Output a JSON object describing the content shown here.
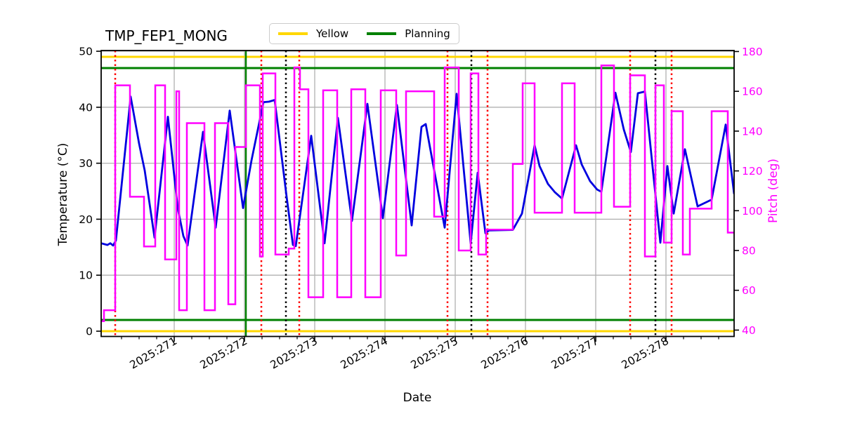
{
  "figure": {
    "background": "#ffffff"
  },
  "legend": {
    "items": [
      {
        "label": "Yellow",
        "color": "#ffd700"
      },
      {
        "label": "Planning",
        "color": "#008000"
      }
    ]
  },
  "chart_data": {
    "type": "line",
    "title": "TMP_FEP1_MONG",
    "xlabel": "Date",
    "ylabel_left": "Temperature (°C)",
    "ylabel_right": "Pitch (deg)",
    "grid": true,
    "legend_position": "top-center",
    "colors": {
      "temperature": "#0000e0",
      "pitch": "#ff00ff",
      "yellow_limit": "#ffd700",
      "planning_limit": "#008000",
      "red_marker": "#ff0000",
      "black_marker": "#000000",
      "grid": "#b1b1b1",
      "right_axis_text": "#ff00ff"
    },
    "x_axis": {
      "range": [
        269.96,
        278.97
      ],
      "major_ticks": [
        271,
        272,
        273,
        274,
        275,
        276,
        277,
        278
      ],
      "tick_labels": [
        "2025:271",
        "2025:272",
        "2025:273",
        "2025:274",
        "2025:275",
        "2025:276",
        "2025:277",
        "2025:278"
      ],
      "minor_tick_interval": 0.25,
      "label_rotation_deg": 30
    },
    "y_axis_left": {
      "range": [
        -0.94,
        50.13
      ],
      "ticks": [
        0,
        10,
        20,
        30,
        40,
        50
      ]
    },
    "y_axis_right": {
      "range": [
        36.8,
        180.5
      ],
      "ticks": [
        40,
        60,
        80,
        100,
        120,
        140,
        160,
        180
      ]
    },
    "limit_lines": {
      "yellow": {
        "color": "#ffd700",
        "values": [
          0,
          49
        ]
      },
      "planning": {
        "color": "#008000",
        "values": [
          2,
          47
        ]
      }
    },
    "vertical_lines": {
      "red_dotted": [
        270.16,
        272.24,
        272.78,
        274.89,
        275.46,
        277.49,
        278.08
      ],
      "black_dotted": [
        272.59,
        275.23,
        277.85
      ],
      "green_solid": [
        272.02
      ]
    },
    "series": [
      {
        "name": "Temperature",
        "axis": "left",
        "style": "line",
        "color": "#0000e0",
        "points": [
          [
            269.96,
            15.7
          ],
          [
            270.05,
            15.4
          ],
          [
            270.09,
            15.7
          ],
          [
            270.13,
            15.3
          ],
          [
            270.17,
            16.2
          ],
          [
            270.38,
            41.9
          ],
          [
            270.5,
            33.5
          ],
          [
            270.58,
            28.7
          ],
          [
            270.72,
            16.7
          ],
          [
            270.91,
            38.3
          ],
          [
            271.05,
            22.0
          ],
          [
            271.13,
            17.0
          ],
          [
            271.19,
            15.3
          ],
          [
            271.41,
            35.6
          ],
          [
            271.59,
            18.5
          ],
          [
            271.79,
            39.4
          ],
          [
            271.98,
            22.0
          ],
          [
            272.1,
            30.5
          ],
          [
            272.27,
            40.9
          ],
          [
            272.35,
            41.0
          ],
          [
            272.43,
            41.3
          ],
          [
            272.6,
            24.0
          ],
          [
            272.69,
            15.4
          ],
          [
            272.73,
            15.2
          ],
          [
            272.95,
            34.9
          ],
          [
            273.14,
            15.7
          ],
          [
            273.33,
            38.1
          ],
          [
            273.53,
            19.7
          ],
          [
            273.75,
            40.6
          ],
          [
            273.97,
            20.2
          ],
          [
            274.17,
            40.4
          ],
          [
            274.38,
            18.9
          ],
          [
            274.52,
            36.5
          ],
          [
            274.58,
            37.0
          ],
          [
            274.85,
            18.5
          ],
          [
            275.02,
            42.4
          ],
          [
            275.22,
            15.7
          ],
          [
            275.32,
            28.3
          ],
          [
            275.43,
            17.5
          ],
          [
            275.48,
            18.0
          ],
          [
            275.82,
            18.1
          ],
          [
            275.95,
            21.0
          ],
          [
            276.13,
            33.2
          ],
          [
            276.2,
            29.5
          ],
          [
            276.32,
            26.3
          ],
          [
            276.42,
            24.8
          ],
          [
            276.52,
            23.7
          ],
          [
            276.72,
            33.2
          ],
          [
            276.8,
            29.8
          ],
          [
            276.92,
            26.8
          ],
          [
            277.02,
            25.3
          ],
          [
            277.08,
            24.9
          ],
          [
            277.28,
            42.6
          ],
          [
            277.4,
            36.0
          ],
          [
            277.5,
            32.0
          ],
          [
            277.6,
            42.5
          ],
          [
            277.7,
            42.8
          ],
          [
            277.92,
            15.8
          ],
          [
            278.02,
            29.5
          ],
          [
            278.11,
            21.0
          ],
          [
            278.27,
            32.5
          ],
          [
            278.45,
            22.3
          ],
          [
            278.65,
            23.5
          ],
          [
            278.85,
            36.9
          ],
          [
            278.97,
            24.5
          ]
        ]
      },
      {
        "name": "Pitch",
        "axis": "right",
        "style": "step",
        "color": "#ff00ff",
        "x_end": 278.97,
        "steps": [
          [
            269.96,
            44.5
          ],
          [
            270.0,
            50
          ],
          [
            270.16,
            163
          ],
          [
            270.37,
            107
          ],
          [
            270.57,
            82
          ],
          [
            270.73,
            163
          ],
          [
            270.87,
            75.5
          ],
          [
            271.03,
            160
          ],
          [
            271.07,
            50
          ],
          [
            271.18,
            144
          ],
          [
            271.43,
            50
          ],
          [
            271.58,
            144
          ],
          [
            271.77,
            53
          ],
          [
            271.87,
            132
          ],
          [
            272.02,
            163
          ],
          [
            272.22,
            77
          ],
          [
            272.26,
            169
          ],
          [
            272.44,
            78
          ],
          [
            272.63,
            81
          ],
          [
            272.71,
            172
          ],
          [
            272.79,
            161
          ],
          [
            272.91,
            56.5
          ],
          [
            273.12,
            160.5
          ],
          [
            273.32,
            56.5
          ],
          [
            273.52,
            161
          ],
          [
            273.72,
            56.5
          ],
          [
            273.94,
            160.5
          ],
          [
            274.16,
            77.5
          ],
          [
            274.3,
            160
          ],
          [
            274.7,
            97
          ],
          [
            274.85,
            172
          ],
          [
            275.05,
            80
          ],
          [
            275.22,
            169
          ],
          [
            275.33,
            78
          ],
          [
            275.44,
            90.5
          ],
          [
            275.82,
            123.5
          ],
          [
            275.96,
            164
          ],
          [
            276.13,
            99
          ],
          [
            276.52,
            164
          ],
          [
            276.7,
            99
          ],
          [
            277.08,
            173
          ],
          [
            277.26,
            102
          ],
          [
            277.49,
            168
          ],
          [
            277.7,
            77
          ],
          [
            277.85,
            163
          ],
          [
            277.97,
            84
          ],
          [
            278.08,
            150
          ],
          [
            278.24,
            78
          ],
          [
            278.34,
            101
          ],
          [
            278.65,
            150
          ],
          [
            278.88,
            89
          ]
        ]
      }
    ]
  }
}
